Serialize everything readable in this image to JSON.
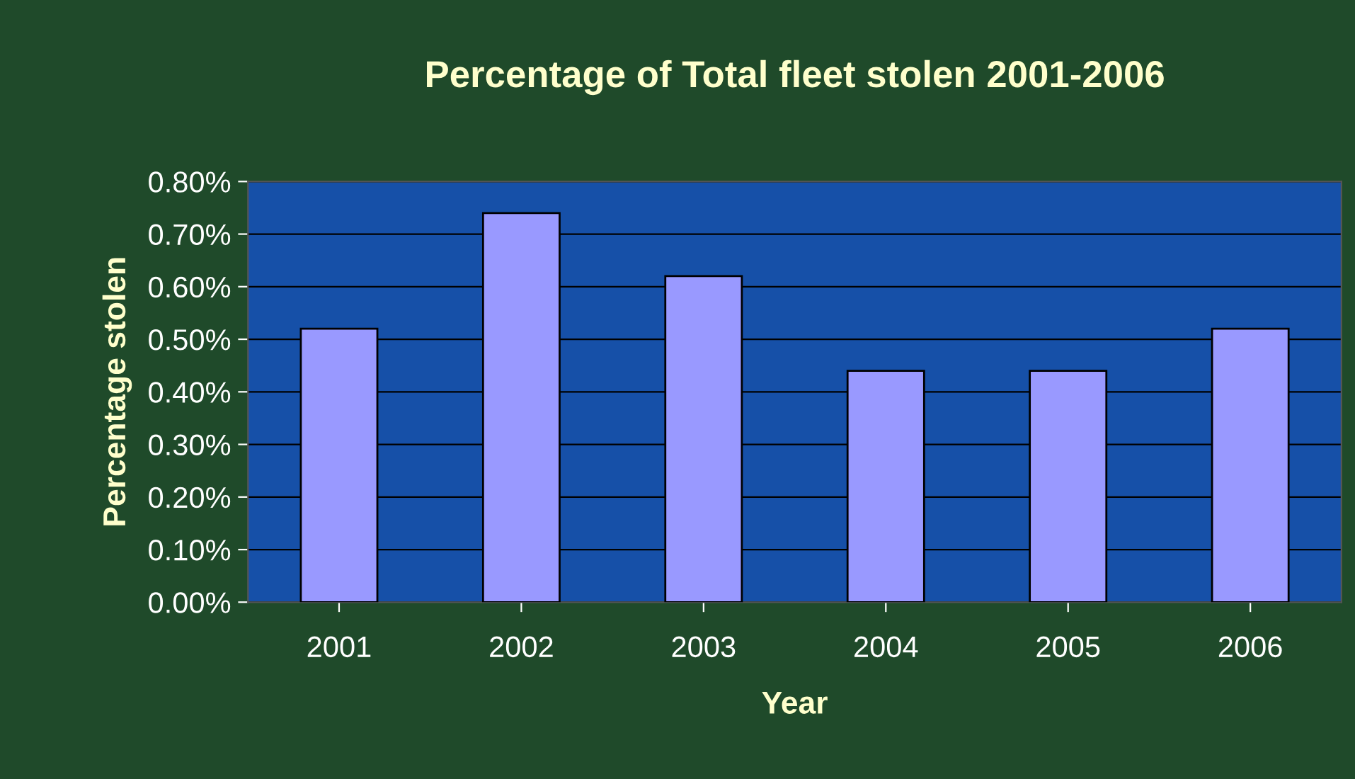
{
  "chart_data": {
    "type": "bar",
    "title": "Percentage of Total fleet stolen 2001-2006",
    "xlabel": "Year",
    "ylabel": "Percentage stolen",
    "categories": [
      "2001",
      "2002",
      "2003",
      "2004",
      "2005",
      "2006"
    ],
    "values": [
      0.52,
      0.74,
      0.62,
      0.44,
      0.44,
      0.52
    ],
    "color": "#9999ff",
    "ylim": [
      0,
      0.8
    ],
    "yticks": [
      {
        "value": 0,
        "label": "0.00%"
      },
      {
        "value": 0.1,
        "label": "0.10%"
      },
      {
        "value": 0.2,
        "label": "0.20%"
      },
      {
        "value": 0.3,
        "label": "0.30%"
      },
      {
        "value": 0.4,
        "label": "0.40%"
      },
      {
        "value": 0.5,
        "label": "0.50%"
      },
      {
        "value": 0.6,
        "label": "0.60%"
      },
      {
        "value": 0.7,
        "label": "0.70%"
      },
      {
        "value": 0.8,
        "label": "0.80%"
      }
    ],
    "grid": "y"
  }
}
